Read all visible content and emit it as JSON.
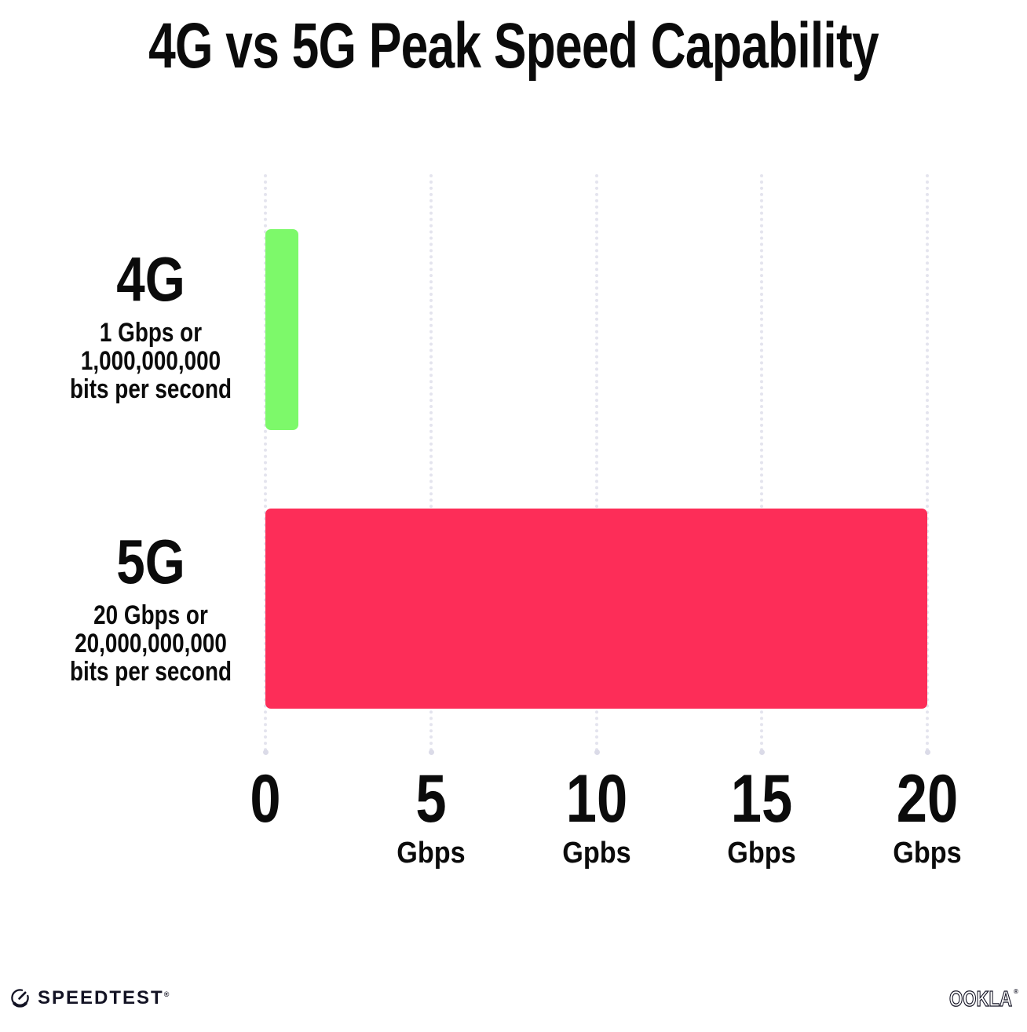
{
  "title": "4G vs 5G Peak Speed Capability",
  "chart_data": {
    "type": "bar",
    "orientation": "horizontal",
    "title": "4G vs 5G Peak Speed Capability",
    "categories": [
      "4G",
      "5G"
    ],
    "values": [
      1,
      20
    ],
    "xlim": [
      0,
      20
    ],
    "x_tick_values": [
      0,
      5,
      10,
      15,
      20
    ],
    "xlabel": "Gbps",
    "ylabel": "",
    "grid": "vertical-dotted",
    "gridline_color": "#E4E4EE",
    "background": "#FFFFFF",
    "text_color": "#0B0B0B",
    "legend": "none",
    "bars": [
      {
        "label": "4G",
        "value_gbps": 1,
        "color": "#7DF96A",
        "sublines": [
          "1 Gbps or",
          "1,000,000,000",
          "bits per second"
        ]
      },
      {
        "label": "5G",
        "value_gbps": 20,
        "color": "#FD2D58",
        "sublines": [
          "20 Gbps or",
          "20,000,000,000",
          "bits per second"
        ]
      }
    ],
    "x_ticks": [
      {
        "number": "0",
        "unit": ""
      },
      {
        "number": "5",
        "unit": "Gbps"
      },
      {
        "number": "10",
        "unit": "Gpbs"
      },
      {
        "number": "15",
        "unit": "Gbps"
      },
      {
        "number": "20",
        "unit": "Gbps"
      }
    ]
  },
  "footer": {
    "speedtest": {
      "label": "SPEEDTEST",
      "trademark": "®"
    },
    "ookla": {
      "label": "OOKLA",
      "trademark": "®"
    }
  }
}
